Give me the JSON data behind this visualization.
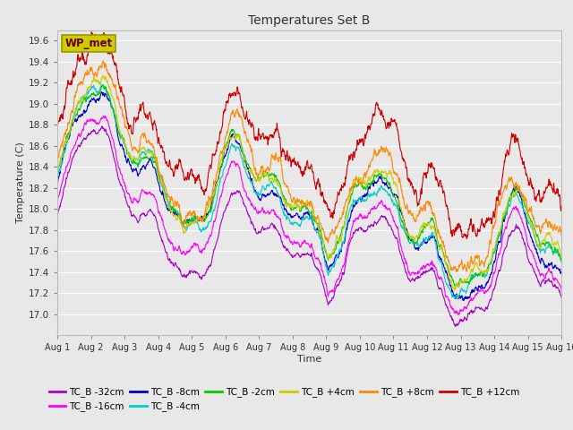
{
  "title": "Temperatures Set B",
  "xlabel": "Time",
  "ylabel": "Temperature (C)",
  "ylim": [
    16.8,
    19.7
  ],
  "yticks": [
    17.0,
    17.2,
    17.4,
    17.6,
    17.8,
    18.0,
    18.2,
    18.4,
    18.6,
    18.8,
    19.0,
    19.2,
    19.4,
    19.6
  ],
  "xlim": [
    0,
    15
  ],
  "xtick_labels": [
    "Aug 1",
    "Aug 2",
    "Aug 3",
    "Aug 4",
    "Aug 5",
    "Aug 6",
    "Aug 7",
    "Aug 8",
    "Aug 9",
    "Aug 10",
    "Aug 11",
    "Aug 12",
    "Aug 13",
    "Aug 14",
    "Aug 15",
    "Aug 16"
  ],
  "xtick_positions": [
    0,
    1,
    2,
    3,
    4,
    5,
    6,
    7,
    8,
    9,
    10,
    11,
    12,
    13,
    14,
    15
  ],
  "series_colors": {
    "TC_B -32cm": "#aa00cc",
    "TC_B -16cm": "#ff00ff",
    "TC_B -8cm": "#0000cc",
    "TC_B -4cm": "#00cccc",
    "TC_B -2cm": "#00cc00",
    "TC_B +4cm": "#cccc00",
    "TC_B +8cm": "#ff8800",
    "TC_B +12cm": "#cc0000"
  },
  "legend_order": [
    "TC_B -32cm",
    "TC_B -16cm",
    "TC_B -8cm",
    "TC_B -4cm",
    "TC_B -2cm",
    "TC_B +4cm",
    "TC_B +8cm",
    "TC_B +12cm"
  ],
  "background_color": "#e8e8e8",
  "plot_bg_color": "#e8e8e8",
  "grid_color": "#ffffff",
  "wp_met_text": "WP_met",
  "wp_met_box_facecolor": "#cccc00",
  "wp_met_box_edgecolor": "#999900",
  "wp_met_text_color": "#660000",
  "n_points": 1500,
  "line_width": 0.8
}
